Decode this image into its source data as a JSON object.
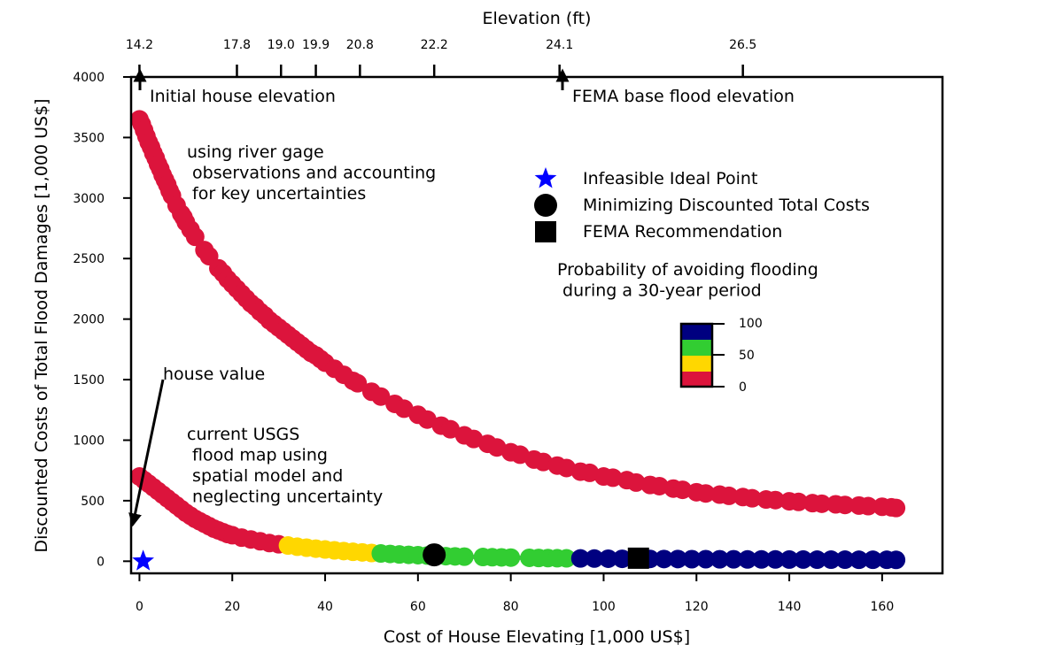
{
  "chart_data": {
    "type": "scatter",
    "xlabel": "Cost of House Elevating [1,000 US$]",
    "ylabel": "Discounted Costs of Total Flood Damages [1,000 US$]",
    "top_xlabel": "Elevation (ft)",
    "xlim": [
      -1.8,
      173
    ],
    "ylim": [
      -100,
      4000
    ],
    "x_ticks": [
      0,
      20,
      40,
      60,
      80,
      100,
      120,
      140,
      160
    ],
    "y_ticks": [
      0,
      500,
      1000,
      1500,
      2000,
      2500,
      3000,
      3500,
      4000
    ],
    "top_ticks": [
      {
        "x": 0,
        "label": "14.2"
      },
      {
        "x": 21,
        "label": "17.8"
      },
      {
        "x": 30.5,
        "label": "19.0"
      },
      {
        "x": 38,
        "label": "19.9"
      },
      {
        "x": 47.5,
        "label": "20.8"
      },
      {
        "x": 63.5,
        "label": "22.2"
      },
      {
        "x": 90.5,
        "label": "24.1"
      },
      {
        "x": 130,
        "label": "26.5"
      }
    ],
    "colors": {
      "red": "#dc143c",
      "yellow": "#ffd700",
      "green": "#32cd32",
      "navy": "#000080",
      "line": "#808080",
      "ideal": "#0000ff"
    },
    "series": [
      {
        "x": [
          0,
          0.5,
          1,
          1.5,
          2,
          2.5,
          3,
          3.5,
          4,
          4.5,
          5,
          5.5,
          6,
          6.5,
          7,
          8,
          9,
          9.5,
          10,
          11,
          12,
          14,
          15,
          17,
          18,
          19,
          20,
          21,
          22,
          23,
          24,
          25,
          26,
          27,
          28,
          29,
          30,
          31,
          32,
          33,
          34,
          35,
          36,
          37,
          38,
          39,
          40,
          42,
          44,
          46,
          47,
          50,
          52,
          55,
          57,
          60,
          62,
          65,
          67,
          70,
          72,
          75,
          77,
          80,
          82,
          85,
          87,
          90,
          92,
          95,
          97,
          100,
          102,
          105,
          107,
          110,
          112,
          115,
          117,
          120,
          122,
          125,
          127,
          130,
          132,
          135,
          137,
          140,
          142,
          145,
          147,
          150,
          152,
          155,
          157,
          160,
          162,
          163
        ],
        "y": [
          3650,
          3610,
          3560,
          3510,
          3460,
          3420,
          3370,
          3330,
          3280,
          3240,
          3190,
          3150,
          3110,
          3060,
          3020,
          2940,
          2870,
          2840,
          2800,
          2740,
          2680,
          2570,
          2520,
          2420,
          2380,
          2330,
          2290,
          2250,
          2210,
          2170,
          2130,
          2100,
          2060,
          2030,
          1990,
          1960,
          1930,
          1900,
          1870,
          1840,
          1810,
          1780,
          1750,
          1720,
          1700,
          1670,
          1640,
          1590,
          1540,
          1490,
          1470,
          1400,
          1360,
          1300,
          1260,
          1210,
          1170,
          1120,
          1090,
          1040,
          1010,
          970,
          940,
          900,
          880,
          840,
          820,
          790,
          770,
          740,
          730,
          700,
          690,
          670,
          650,
          630,
          620,
          600,
          590,
          570,
          560,
          550,
          540,
          530,
          520,
          510,
          505,
          495,
          490,
          480,
          475,
          470,
          465,
          460,
          455,
          450,
          445,
          440
        ]
      },
      {
        "x": [
          0,
          1,
          2,
          3,
          4,
          5,
          6,
          7,
          8,
          9,
          10,
          11,
          12,
          13,
          14,
          15,
          16,
          17,
          18,
          19,
          20,
          22,
          24,
          26,
          28,
          30,
          32,
          34,
          36,
          38,
          40,
          42,
          44,
          46,
          48,
          50,
          52,
          54,
          56,
          58,
          60,
          62,
          64,
          66,
          68,
          70,
          74,
          76,
          78,
          80,
          84,
          86,
          88,
          90,
          92,
          95,
          98,
          101,
          104,
          107,
          110,
          113,
          116,
          119,
          122,
          125,
          128,
          131,
          134,
          137,
          140,
          143,
          146,
          149,
          152,
          155,
          158,
          161,
          163
        ],
        "y": [
          700,
          670,
          640,
          610,
          580,
          550,
          520,
          490,
          460,
          430,
          400,
          375,
          350,
          330,
          310,
          290,
          270,
          255,
          240,
          225,
          215,
          195,
          180,
          165,
          150,
          140,
          130,
          120,
          112,
          104,
          97,
          90,
          84,
          78,
          73,
          68,
          64,
          60,
          56,
          53,
          50,
          47,
          45,
          42,
          40,
          38,
          35,
          33,
          32,
          30,
          28,
          27,
          26,
          25,
          24,
          23,
          22,
          21,
          20,
          19,
          19,
          18,
          18,
          17,
          17,
          16,
          16,
          15,
          15,
          15,
          14,
          14,
          13,
          13,
          13,
          12,
          12,
          12,
          11
        ]
      }
    ],
    "highlight_points": {
      "ideal": {
        "x": 0.8,
        "y": 0
      },
      "min_cost": {
        "x": 63.5,
        "y": 53
      },
      "fema": {
        "x": 107.5,
        "y": 25
      }
    },
    "colorbar": {
      "ticks": [
        "100",
        "50",
        "0"
      ]
    },
    "legend": {
      "entries": [
        "Infeasible Ideal Point",
        "Minimizing Discounted Total Costs",
        "FEMA Recommendation"
      ],
      "position": "upper-right"
    },
    "colorbar_title": "Probability of avoiding flooding\n during a 30-year period",
    "annotations": {
      "initial": "Initial house elevation",
      "fema_bfe": "FEMA base flood elevation",
      "house_value": "house value",
      "upper_curve": "using river gage\n observations and accounting\n for key uncertainties",
      "lower_curve": "current USGS\n flood map using\n spatial model and\n neglecting uncertainty"
    },
    "house_value_arrow": {
      "from": {
        "x": 5,
        "y": 1500
      },
      "to": {
        "x": -1.5,
        "y": 320
      }
    }
  }
}
